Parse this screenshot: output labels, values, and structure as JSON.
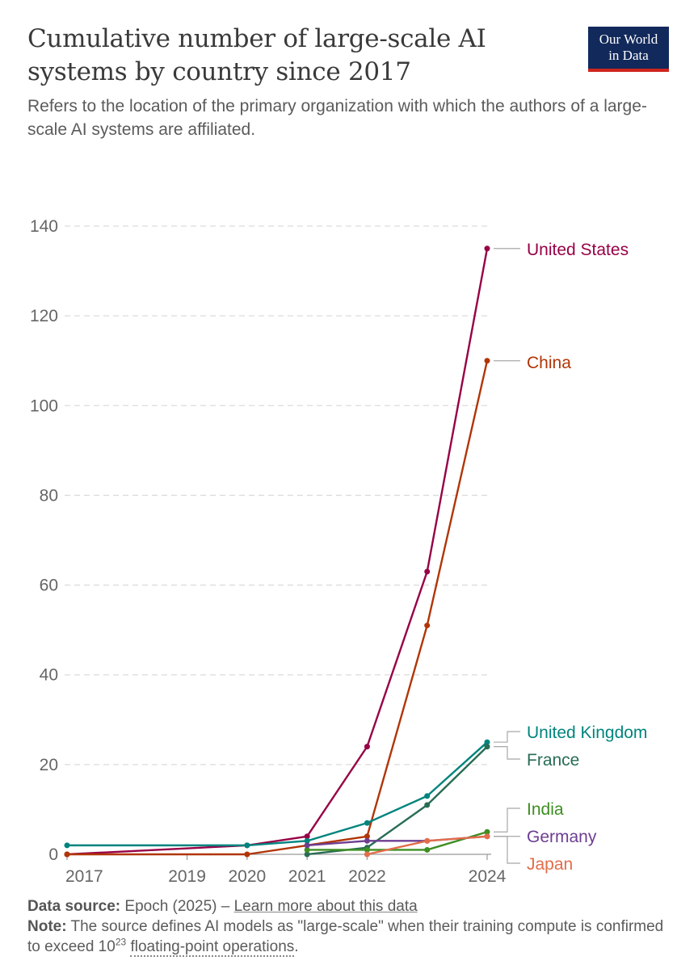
{
  "header": {
    "title": "Cumulative number of large-scale AI systems by country since 2017",
    "subtitle": "Refers to the location of the primary organization with which the authors of a large-scale AI systems are affiliated.",
    "logo_line1": "Our World",
    "logo_line2": "in Data"
  },
  "colors": {
    "brand_navy": "#12295b",
    "brand_red": "#ce261e",
    "grid": "#dcdcdc",
    "axis_text": "#666666"
  },
  "chart_data": {
    "type": "line",
    "title": "Cumulative number of large-scale AI systems by country since 2017",
    "xlabel": "",
    "ylabel": "",
    "ylim": [
      0,
      140
    ],
    "xlim": [
      2017,
      2024
    ],
    "y_ticks": [
      0,
      20,
      40,
      60,
      80,
      100,
      120,
      140
    ],
    "x_ticks": [
      2017,
      2019,
      2020,
      2021,
      2022,
      2024
    ],
    "grid": "horizontal-dashed",
    "legend": "right-end-labels",
    "series": [
      {
        "name": "United States",
        "color": "#970046",
        "points": [
          [
            2017,
            0
          ],
          [
            2020,
            2
          ],
          [
            2021,
            4
          ],
          [
            2022,
            24
          ],
          [
            2023,
            63
          ],
          [
            2024,
            135
          ]
        ]
      },
      {
        "name": "China",
        "color": "#b13507",
        "points": [
          [
            2017,
            0
          ],
          [
            2020,
            0
          ],
          [
            2021,
            2
          ],
          [
            2022,
            4
          ],
          [
            2023,
            51
          ],
          [
            2024,
            110
          ]
        ]
      },
      {
        "name": "United Kingdom",
        "color": "#00847e",
        "points": [
          [
            2017,
            2
          ],
          [
            2020,
            2
          ],
          [
            2021,
            3
          ],
          [
            2022,
            7
          ],
          [
            2023,
            13
          ],
          [
            2024,
            25
          ]
        ]
      },
      {
        "name": "France",
        "color": "#286d54",
        "points": [
          [
            2021,
            0
          ],
          [
            2022,
            1.5
          ],
          [
            2023,
            11
          ],
          [
            2024,
            24
          ]
        ]
      },
      {
        "name": "India",
        "color": "#3e8e22",
        "points": [
          [
            2021,
            1
          ],
          [
            2022,
            1
          ],
          [
            2023,
            1
          ],
          [
            2024,
            5
          ]
        ]
      },
      {
        "name": "Germany",
        "color": "#6d3e91",
        "points": [
          [
            2021,
            2
          ],
          [
            2022,
            3
          ],
          [
            2023,
            3
          ],
          [
            2024,
            4
          ]
        ]
      },
      {
        "name": "Japan",
        "color": "#e36d4a",
        "points": [
          [
            2022,
            0
          ],
          [
            2023,
            3
          ],
          [
            2024,
            4
          ]
        ]
      }
    ]
  },
  "footer": {
    "source_label": "Data source:",
    "source_text": "Epoch (2025) –",
    "source_link": "Learn more about this data",
    "note_label": "Note:",
    "note_text_1": "The source defines AI models as \"large-scale\" when their training compute is confirmed to exceed 10",
    "note_sup": "23",
    "note_link": "floating-point operations",
    "note_end": "."
  }
}
